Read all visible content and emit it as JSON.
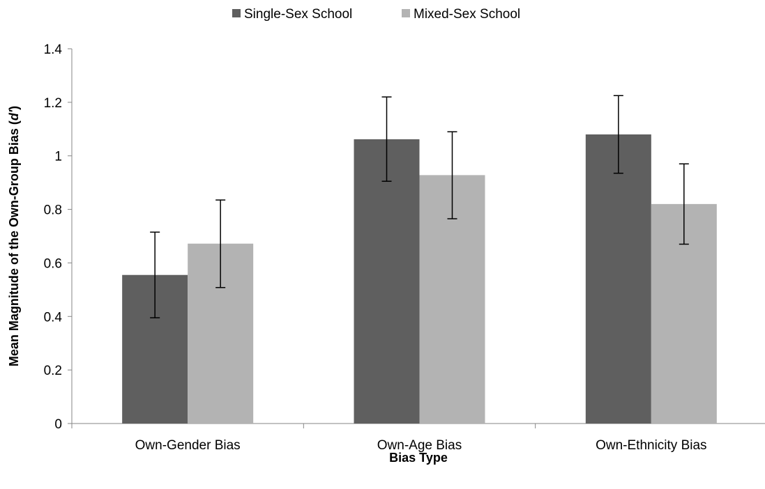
{
  "chart_data": {
    "type": "bar",
    "categories": [
      "Own-Gender Bias",
      "Own-Age Bias",
      "Own-Ethnicity Bias"
    ],
    "series": [
      {
        "name": "Single-Sex School",
        "values": [
          0.555,
          1.062,
          1.08
        ],
        "error_low": [
          0.395,
          0.905,
          0.935
        ],
        "error_high": [
          0.715,
          1.22,
          1.225
        ],
        "color": "#5f5f5f"
      },
      {
        "name": "Mixed-Sex School",
        "values": [
          0.672,
          0.928,
          0.82
        ],
        "error_low": [
          0.508,
          0.765,
          0.67
        ],
        "error_high": [
          0.835,
          1.09,
          0.97
        ],
        "color": "#b3b3b3"
      }
    ],
    "title": "",
    "xlabel": "Bias Type",
    "ylabel_prefix": "Mean Magnitude of the Own-Group Bias (",
    "ylabel_italic": "d'",
    "ylabel_suffix": ")",
    "ylim": [
      0,
      1.4
    ],
    "yticks": [
      "0",
      "0.2",
      "0.4",
      "0.6",
      "0.8",
      "1",
      "1.2",
      "1.4"
    ],
    "grid": false,
    "legend_position": "top-center"
  }
}
